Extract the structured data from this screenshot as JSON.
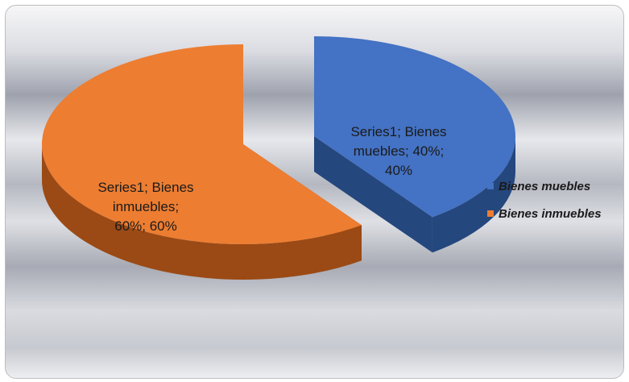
{
  "chart_data": {
    "type": "pie",
    "style": "3d-exploded",
    "title": "",
    "series_name": "Series1",
    "slices": [
      {
        "name": "Bienes muebles",
        "value": 40,
        "percent": "40%",
        "color": "#4472c4",
        "side_color": "#24477d",
        "label_lines": [
          "Series1; Bienes",
          "muebles; 40%;",
          "40%"
        ]
      },
      {
        "name": "Bienes inmuebles",
        "value": 60,
        "percent": "60%",
        "color": "#ed7d31",
        "side_color": "#9b4a15",
        "label_lines": [
          "Series1; Bienes",
          "inmuebles;",
          "60%; 60%"
        ]
      }
    ],
    "legend": {
      "position": "right",
      "items": [
        {
          "label": "Bienes muebles",
          "color": "#4472c4"
        },
        {
          "label": "Bienes inmuebles",
          "color": "#ed7d31"
        }
      ]
    }
  }
}
